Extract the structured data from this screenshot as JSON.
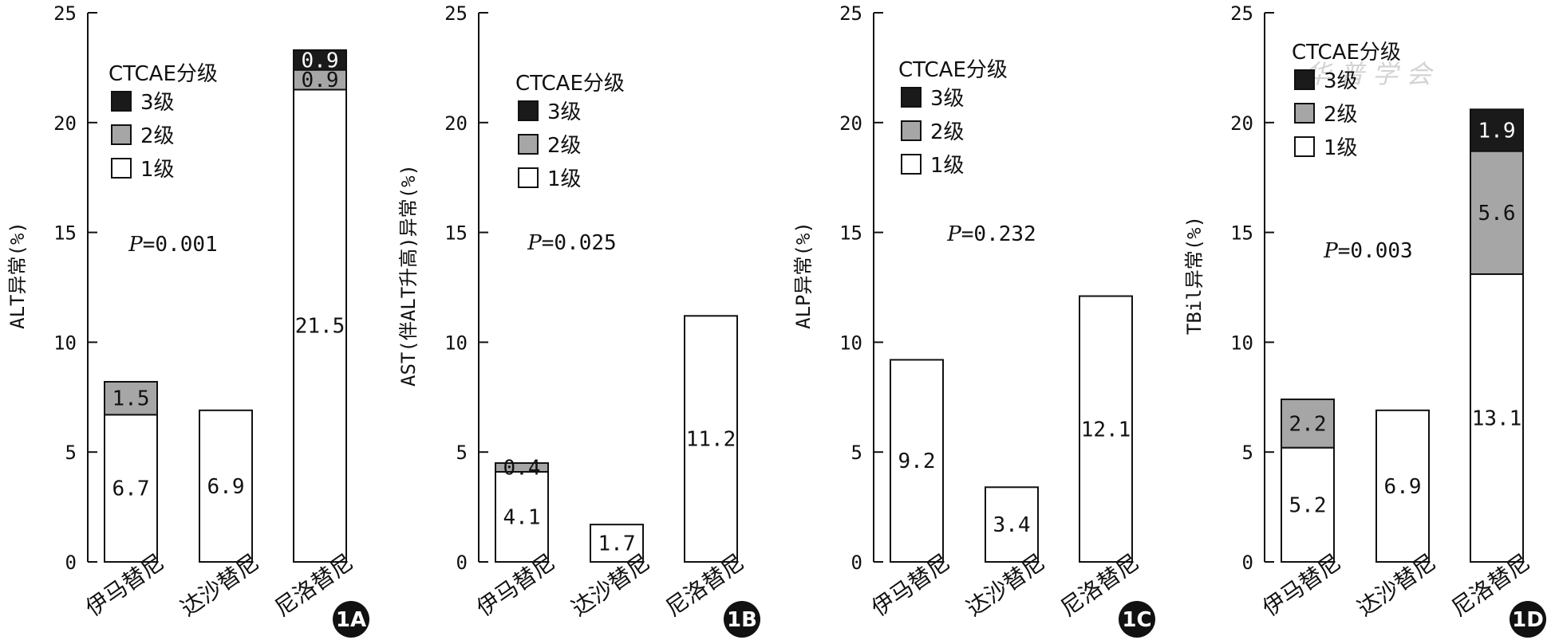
{
  "colors": {
    "grade3": "#1a1a1a",
    "grade2": "#a6a6a6",
    "grade1": "#ffffff",
    "axis": "#111111",
    "badge": "#111111"
  },
  "watermark": "华 普 学 会",
  "chart_data": [
    {
      "type": "bar",
      "stacked": true,
      "panel": "1A",
      "ylabel": "ALT异常(%)",
      "ylim": [
        0,
        25
      ],
      "yticks": [
        0,
        5,
        10,
        15,
        20,
        25
      ],
      "categories": [
        "伊马替尼",
        "达沙替尼",
        "尼洛替尼"
      ],
      "legend_title": "CTCAE分级",
      "legend_items": [
        "3级",
        "2级",
        "1级"
      ],
      "p_label": "P",
      "p_value": "=0.001",
      "series": [
        {
          "name": "1级",
          "values": [
            6.7,
            6.9,
            21.5
          ],
          "labels": [
            "6.7",
            "6.9",
            "21.5"
          ]
        },
        {
          "name": "2级",
          "values": [
            1.5,
            0,
            0.9
          ],
          "labels": [
            "1.5",
            "",
            "0.9"
          ]
        },
        {
          "name": "3级",
          "values": [
            0,
            0,
            0.9
          ],
          "labels": [
            "",
            "",
            "0.9"
          ]
        }
      ]
    },
    {
      "type": "bar",
      "stacked": true,
      "panel": "1B",
      "ylabel": "AST(伴ALT升高)异常(%)",
      "ylim": [
        0,
        25
      ],
      "yticks": [
        0,
        5,
        10,
        15,
        20,
        25
      ],
      "categories": [
        "伊马替尼",
        "达沙替尼",
        "尼洛替尼"
      ],
      "legend_title": "CTCAE分级",
      "legend_items": [
        "3级",
        "2级",
        "1级"
      ],
      "p_label": "P",
      "p_value": "=0.025",
      "series": [
        {
          "name": "1级",
          "values": [
            4.1,
            1.7,
            11.2
          ],
          "labels": [
            "4.1",
            "1.7",
            "11.2"
          ]
        },
        {
          "name": "2级",
          "values": [
            0.4,
            0,
            0
          ],
          "labels": [
            "0.4",
            "",
            ""
          ]
        },
        {
          "name": "3级",
          "values": [
            0,
            0,
            0
          ],
          "labels": [
            "",
            "",
            ""
          ]
        }
      ]
    },
    {
      "type": "bar",
      "stacked": true,
      "panel": "1C",
      "ylabel": "ALP异常(%)",
      "ylim": [
        0,
        25
      ],
      "yticks": [
        0,
        5,
        10,
        15,
        20,
        25
      ],
      "categories": [
        "伊马替尼",
        "达沙替尼",
        "尼洛替尼"
      ],
      "legend_title": "CTCAE分级",
      "legend_items": [
        "3级",
        "2级",
        "1级"
      ],
      "p_label": "P",
      "p_value": "=0.232",
      "series": [
        {
          "name": "1级",
          "values": [
            9.2,
            3.4,
            12.1
          ],
          "labels": [
            "9.2",
            "3.4",
            "12.1"
          ]
        },
        {
          "name": "2级",
          "values": [
            0,
            0,
            0
          ],
          "labels": [
            "",
            "",
            ""
          ]
        },
        {
          "name": "3级",
          "values": [
            0,
            0,
            0
          ],
          "labels": [
            "",
            "",
            ""
          ]
        }
      ]
    },
    {
      "type": "bar",
      "stacked": true,
      "panel": "1D",
      "ylabel": "TBil异常(%)",
      "ylim": [
        0,
        25
      ],
      "yticks": [
        0,
        5,
        10,
        15,
        20,
        25
      ],
      "categories": [
        "伊马替尼",
        "达沙替尼",
        "尼洛替尼"
      ],
      "legend_title": "CTCAE分级",
      "legend_items": [
        "3级",
        "2级",
        "1级"
      ],
      "p_label": "P",
      "p_value": "=0.003",
      "series": [
        {
          "name": "1级",
          "values": [
            5.2,
            6.9,
            13.1
          ],
          "labels": [
            "5.2",
            "6.9",
            "13.1"
          ]
        },
        {
          "name": "2级",
          "values": [
            2.2,
            0,
            5.6
          ],
          "labels": [
            "2.2",
            "",
            "5.6"
          ]
        },
        {
          "name": "3级",
          "values": [
            0,
            0,
            1.9
          ],
          "labels": [
            "",
            "",
            "1.9"
          ]
        }
      ]
    }
  ]
}
